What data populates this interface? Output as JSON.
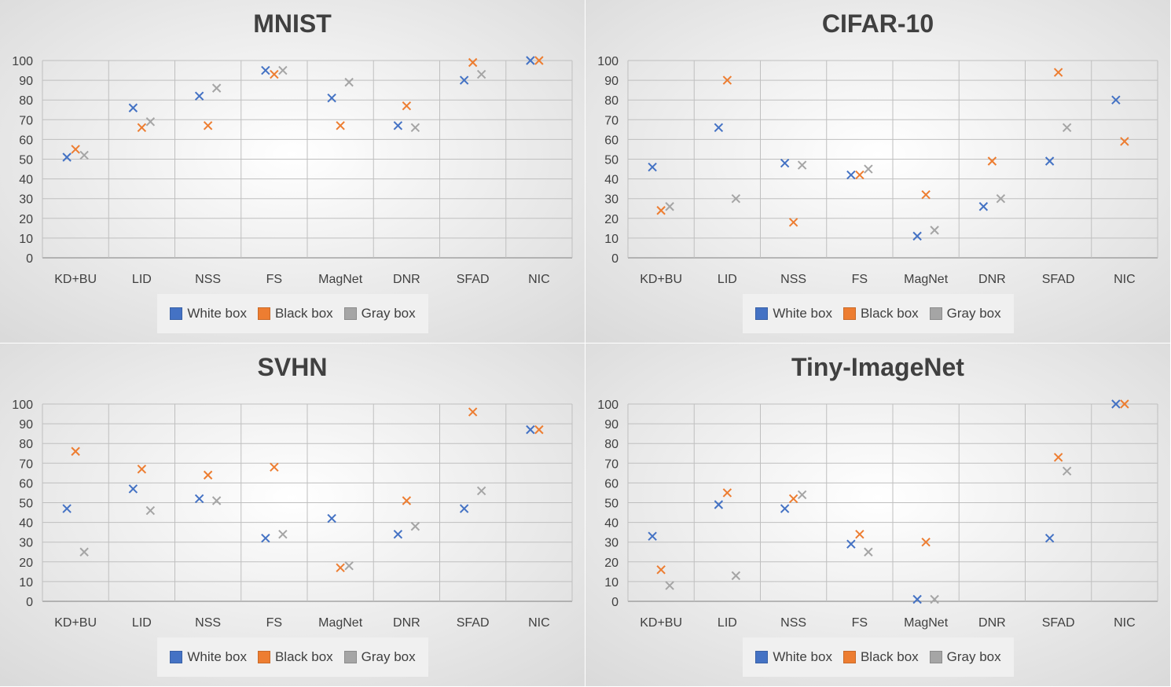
{
  "colors": {
    "white_box": "#4472C4",
    "black_box": "#ED7D31",
    "gray_box": "#A5A5A5"
  },
  "legend": {
    "white_box": "White box",
    "black_box": "Black box",
    "gray_box": "Gray box"
  },
  "chart_data": [
    {
      "type": "scatter",
      "title": "MNIST",
      "categories": [
        "KD+BU",
        "LID",
        "NSS",
        "FS",
        "MagNet",
        "DNR",
        "SFAD",
        "NIC"
      ],
      "ylim": [
        0,
        100
      ],
      "yticks": [
        "0",
        "10",
        "20",
        "30",
        "40",
        "50",
        "60",
        "70",
        "80",
        "90",
        "100"
      ],
      "grid": true,
      "legend_position": "bottom",
      "series": [
        {
          "name": "White box",
          "key": "white_box",
          "values": [
            51,
            76,
            82,
            95,
            81,
            67,
            90,
            100
          ]
        },
        {
          "name": "Black box",
          "key": "black_box",
          "values": [
            55,
            66,
            67,
            93,
            67,
            77,
            99,
            100
          ]
        },
        {
          "name": "Gray box",
          "key": "gray_box",
          "values": [
            52,
            69,
            86,
            95,
            89,
            66,
            93,
            null
          ]
        }
      ]
    },
    {
      "type": "scatter",
      "title": "CIFAR-10",
      "categories": [
        "KD+BU",
        "LID",
        "NSS",
        "FS",
        "MagNet",
        "DNR",
        "SFAD",
        "NIC"
      ],
      "ylim": [
        0,
        100
      ],
      "yticks": [
        "0",
        "10",
        "20",
        "30",
        "40",
        "50",
        "60",
        "70",
        "80",
        "90",
        "100"
      ],
      "grid": true,
      "legend_position": "bottom",
      "series": [
        {
          "name": "White box",
          "key": "white_box",
          "values": [
            46,
            66,
            48,
            42,
            11,
            26,
            49,
            80
          ]
        },
        {
          "name": "Black box",
          "key": "black_box",
          "values": [
            24,
            90,
            18,
            42,
            32,
            49,
            94,
            59
          ]
        },
        {
          "name": "Gray box",
          "key": "gray_box",
          "values": [
            26,
            30,
            47,
            45,
            14,
            30,
            66,
            null
          ]
        }
      ]
    },
    {
      "type": "scatter",
      "title": "SVHN",
      "categories": [
        "KD+BU",
        "LID",
        "NSS",
        "FS",
        "MagNet",
        "DNR",
        "SFAD",
        "NIC"
      ],
      "ylim": [
        0,
        100
      ],
      "yticks": [
        "0",
        "10",
        "20",
        "30",
        "40",
        "50",
        "60",
        "70",
        "80",
        "90",
        "100"
      ],
      "grid": true,
      "legend_position": "bottom",
      "series": [
        {
          "name": "White box",
          "key": "white_box",
          "values": [
            47,
            57,
            52,
            32,
            42,
            34,
            47,
            87
          ]
        },
        {
          "name": "Black box",
          "key": "black_box",
          "values": [
            76,
            67,
            64,
            68,
            17,
            51,
            96,
            87
          ]
        },
        {
          "name": "Gray box",
          "key": "gray_box",
          "values": [
            25,
            46,
            51,
            34,
            18,
            38,
            56,
            null
          ]
        }
      ]
    },
    {
      "type": "scatter",
      "title": "Tiny-ImageNet",
      "categories": [
        "KD+BU",
        "LID",
        "NSS",
        "FS",
        "MagNet",
        "DNR",
        "SFAD",
        "NIC"
      ],
      "ylim": [
        0,
        100
      ],
      "yticks": [
        "0",
        "10",
        "20",
        "30",
        "40",
        "50",
        "60",
        "70",
        "80",
        "90",
        "100"
      ],
      "grid": true,
      "legend_position": "bottom",
      "series": [
        {
          "name": "White box",
          "key": "white_box",
          "values": [
            33,
            49,
            47,
            29,
            1,
            null,
            32,
            100
          ]
        },
        {
          "name": "Black box",
          "key": "black_box",
          "values": [
            16,
            55,
            52,
            34,
            30,
            null,
            73,
            100
          ]
        },
        {
          "name": "Gray box",
          "key": "gray_box",
          "values": [
            8,
            13,
            54,
            25,
            1,
            null,
            66,
            null
          ]
        }
      ]
    }
  ]
}
